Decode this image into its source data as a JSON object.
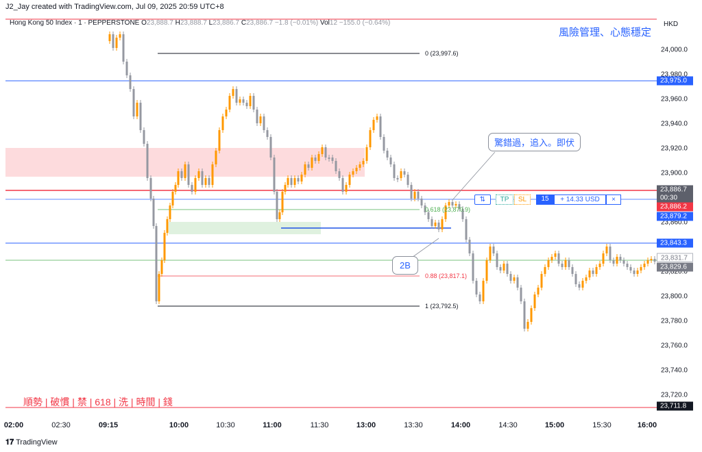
{
  "header": {
    "created_by": "J2_Jay created with TradingView.com, Jul 09, 2025 20:59 UTC+8",
    "symbol": "Hong Kong 50 Index · 1 · PEPPERSTONE",
    "o_label": "O",
    "o_value": "23,888.7",
    "h_label": "H",
    "h_value": "23,888.7",
    "l_label": "L",
    "l_value": "23,886.7",
    "c_label": "C",
    "c_value": "23,886.7",
    "change": "−1.8 (−0.01%)",
    "vol_label": "Vol",
    "vol_value": "12",
    "vol_change": "−155.0 (−0.64%)"
  },
  "watermark": "風險管理、心態穩定",
  "currency": "HKD",
  "price_axis": [
    "24,000.0",
    "23,980.0",
    "23,960.0",
    "23,940.0",
    "23,920.0",
    "23,900.0",
    "23,860.0",
    "23,820.0",
    "23,800.0",
    "23,780.0",
    "23,760.0",
    "23,740.0",
    "23,720.0"
  ],
  "price_badges": {
    "last": "23,886.7",
    "countdown": "00:30",
    "red_level": "23,886.2",
    "blue_high": "23,975.0",
    "position": "23,879.2",
    "blue_mid": "23,843.3",
    "gray_1": "23,831.7",
    "gray_2": "23,829.6",
    "low": "23,711.8"
  },
  "time_axis": [
    "02:00",
    "02:30",
    "09:15",
    "10:00",
    "10:30",
    "11:00",
    "11:30",
    "13:00",
    "13:30",
    "14:00",
    "14:30",
    "15:00",
    "15:30",
    "16:00"
  ],
  "fib_labels": {
    "top": "0 (23,997.6)",
    "mid": "0.618 (23,870.9)",
    "low": "0.88 (23,817.1)",
    "bottom": "1 (23,792.5)"
  },
  "annotations": {
    "callout_top": "驚錯過，追入。即伏",
    "callout_2b": "2B",
    "bottom_note": "順勢 | 破慣 | 禁 | 618 | 洗 | 時間 | 錢"
  },
  "order": {
    "reverse_icon": "⇅",
    "tp": "TP",
    "sl": "SL",
    "qty": "15",
    "pnl": "+ 14.33 USD",
    "close": "×"
  },
  "colors": {
    "up": "#ff9800",
    "down": "#9598a1",
    "red_line": "#f23645",
    "blue_line": "#2962ff",
    "green_line": "#4caf50",
    "red_zone": "rgba(242,54,69,0.18)",
    "green_zone": "rgba(76,175,80,0.18)"
  },
  "branding": "TradingView"
}
